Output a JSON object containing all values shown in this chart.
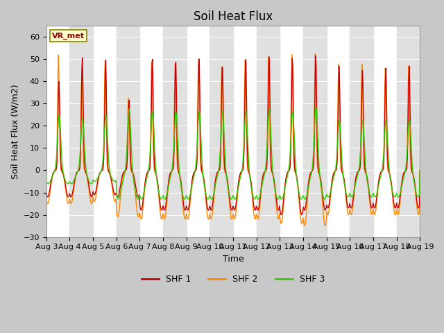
{
  "title": "Soil Heat Flux",
  "ylabel": "Soil Heat Flux (W/m2)",
  "xlabel": "Time",
  "ylim": [
    -30,
    65
  ],
  "yticks": [
    -30,
    -20,
    -10,
    0,
    10,
    20,
    30,
    40,
    50,
    60
  ],
  "colors": {
    "SHF 1": "#cc0000",
    "SHF 2": "#ff8800",
    "SHF 3": "#33cc00"
  },
  "legend_label": "VR_met",
  "n_days": 16,
  "start_day": 3,
  "title_fontsize": 12,
  "label_fontsize": 9,
  "tick_fontsize": 8,
  "fig_bg": "#c8c8c8",
  "plot_bg": "#ffffff",
  "band_color": "#e0e0e0"
}
